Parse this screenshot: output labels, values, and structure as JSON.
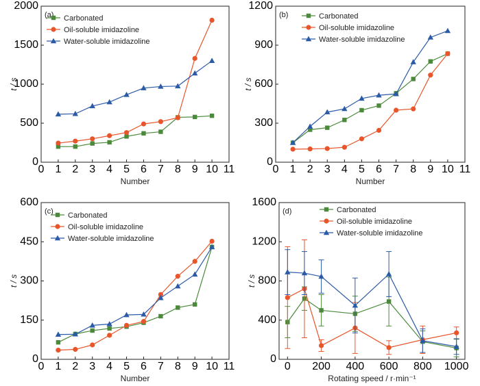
{
  "series_styles": [
    {
      "name": "Carbonated",
      "color": "#4a8a3a",
      "marker": "square"
    },
    {
      "name": "Oil-soluble imidazoline",
      "color": "#e8552a",
      "marker": "circle"
    },
    {
      "name": "Water-soluble imidazoline",
      "color": "#2b5aa6",
      "marker": "triangle"
    }
  ],
  "chart_data": [
    {
      "type": "line",
      "panel_label": "(a)",
      "xlabel": "Number",
      "ylabel": "t / s",
      "xlim": [
        0,
        11
      ],
      "ylim": [
        0,
        2000
      ],
      "xticks": [
        0,
        1,
        2,
        3,
        4,
        5,
        6,
        7,
        8,
        9,
        10,
        11
      ],
      "yticks": [
        0,
        500,
        1000,
        1500,
        2000
      ],
      "legend_position": "top-left",
      "x": [
        1,
        2,
        3,
        4,
        5,
        6,
        7,
        8,
        9,
        10
      ],
      "series": [
        {
          "name": "Carbonated",
          "values": [
            200,
            200,
            240,
            255,
            330,
            370,
            390,
            575,
            580,
            595
          ]
        },
        {
          "name": "Oil-soluble imidazoline",
          "values": [
            245,
            270,
            300,
            340,
            380,
            490,
            520,
            570,
            1330,
            1820
          ]
        },
        {
          "name": "Water-soluble imidazoline",
          "values": [
            615,
            620,
            720,
            770,
            865,
            950,
            970,
            975,
            1140,
            1300
          ]
        }
      ]
    },
    {
      "type": "line",
      "panel_label": "(b)",
      "xlabel": "Number",
      "ylabel": "t / s",
      "xlim": [
        0,
        11
      ],
      "ylim": [
        0,
        1200
      ],
      "xticks": [
        0,
        1,
        2,
        3,
        4,
        5,
        6,
        7,
        8,
        9,
        10,
        11
      ],
      "yticks": [
        0,
        300,
        600,
        900,
        1200
      ],
      "legend_position": "top-left",
      "x": [
        1,
        2,
        3,
        4,
        5,
        6,
        7,
        8,
        9,
        10
      ],
      "series": [
        {
          "name": "Carbonated",
          "values": [
            150,
            250,
            265,
            325,
            400,
            435,
            530,
            640,
            775,
            835
          ]
        },
        {
          "name": "Oil-soluble imidazoline",
          "values": [
            100,
            102,
            105,
            115,
            180,
            245,
            400,
            410,
            670,
            835
          ]
        },
        {
          "name": "Water-soluble imidazoline",
          "values": [
            150,
            275,
            385,
            410,
            490,
            515,
            525,
            770,
            960,
            1010
          ]
        }
      ]
    },
    {
      "type": "line",
      "panel_label": "(c)",
      "xlabel": "Number",
      "ylabel": "t / s",
      "xlim": [
        0,
        11
      ],
      "ylim": [
        0,
        600
      ],
      "xticks": [
        0,
        1,
        2,
        3,
        4,
        5,
        6,
        7,
        8,
        9,
        10,
        11
      ],
      "yticks": [
        0,
        150,
        300,
        450,
        600
      ],
      "legend_position": "top-left",
      "x": [
        1,
        2,
        3,
        4,
        5,
        6,
        7,
        8,
        9,
        10
      ],
      "series": [
        {
          "name": "Carbonated",
          "values": [
            65,
            97,
            110,
            118,
            125,
            140,
            165,
            198,
            210,
            430
          ]
        },
        {
          "name": "Oil-soluble imidazoline",
          "values": [
            35,
            38,
            55,
            92,
            130,
            145,
            248,
            318,
            375,
            452
          ]
        },
        {
          "name": "Water-soluble imidazoline",
          "values": [
            95,
            96,
            130,
            135,
            170,
            172,
            235,
            280,
            325,
            430
          ]
        }
      ]
    },
    {
      "type": "line",
      "panel_label": "(d)",
      "xlabel": "Rotating speed  / r·min⁻¹",
      "ylabel": "t / s",
      "xlim": [
        -50,
        1050
      ],
      "ylim": [
        0,
        1600
      ],
      "xticks": [
        0,
        200,
        400,
        600,
        800,
        1000
      ],
      "yticks": [
        0,
        400,
        800,
        1200,
        1600
      ],
      "legend_position": "top-center",
      "x": [
        0,
        100,
        200,
        400,
        600,
        800,
        1000
      ],
      "series": [
        {
          "name": "Carbonated",
          "values": [
            380,
            620,
            500,
            465,
            590,
            180,
            115
          ],
          "errors": [
            160,
            120,
            160,
            180,
            250,
            110,
            90
          ]
        },
        {
          "name": "Oil-soluble imidazoline",
          "values": [
            630,
            720,
            140,
            320,
            120,
            200,
            270
          ],
          "errors": [
            520,
            500,
            60,
            260,
            70,
            140,
            60
          ]
        },
        {
          "name": "Water-soluble imidazoline",
          "values": [
            890,
            880,
            845,
            550,
            870,
            190,
            130
          ],
          "errors": [
            230,
            220,
            170,
            280,
            230,
            120,
            80
          ]
        }
      ]
    }
  ]
}
